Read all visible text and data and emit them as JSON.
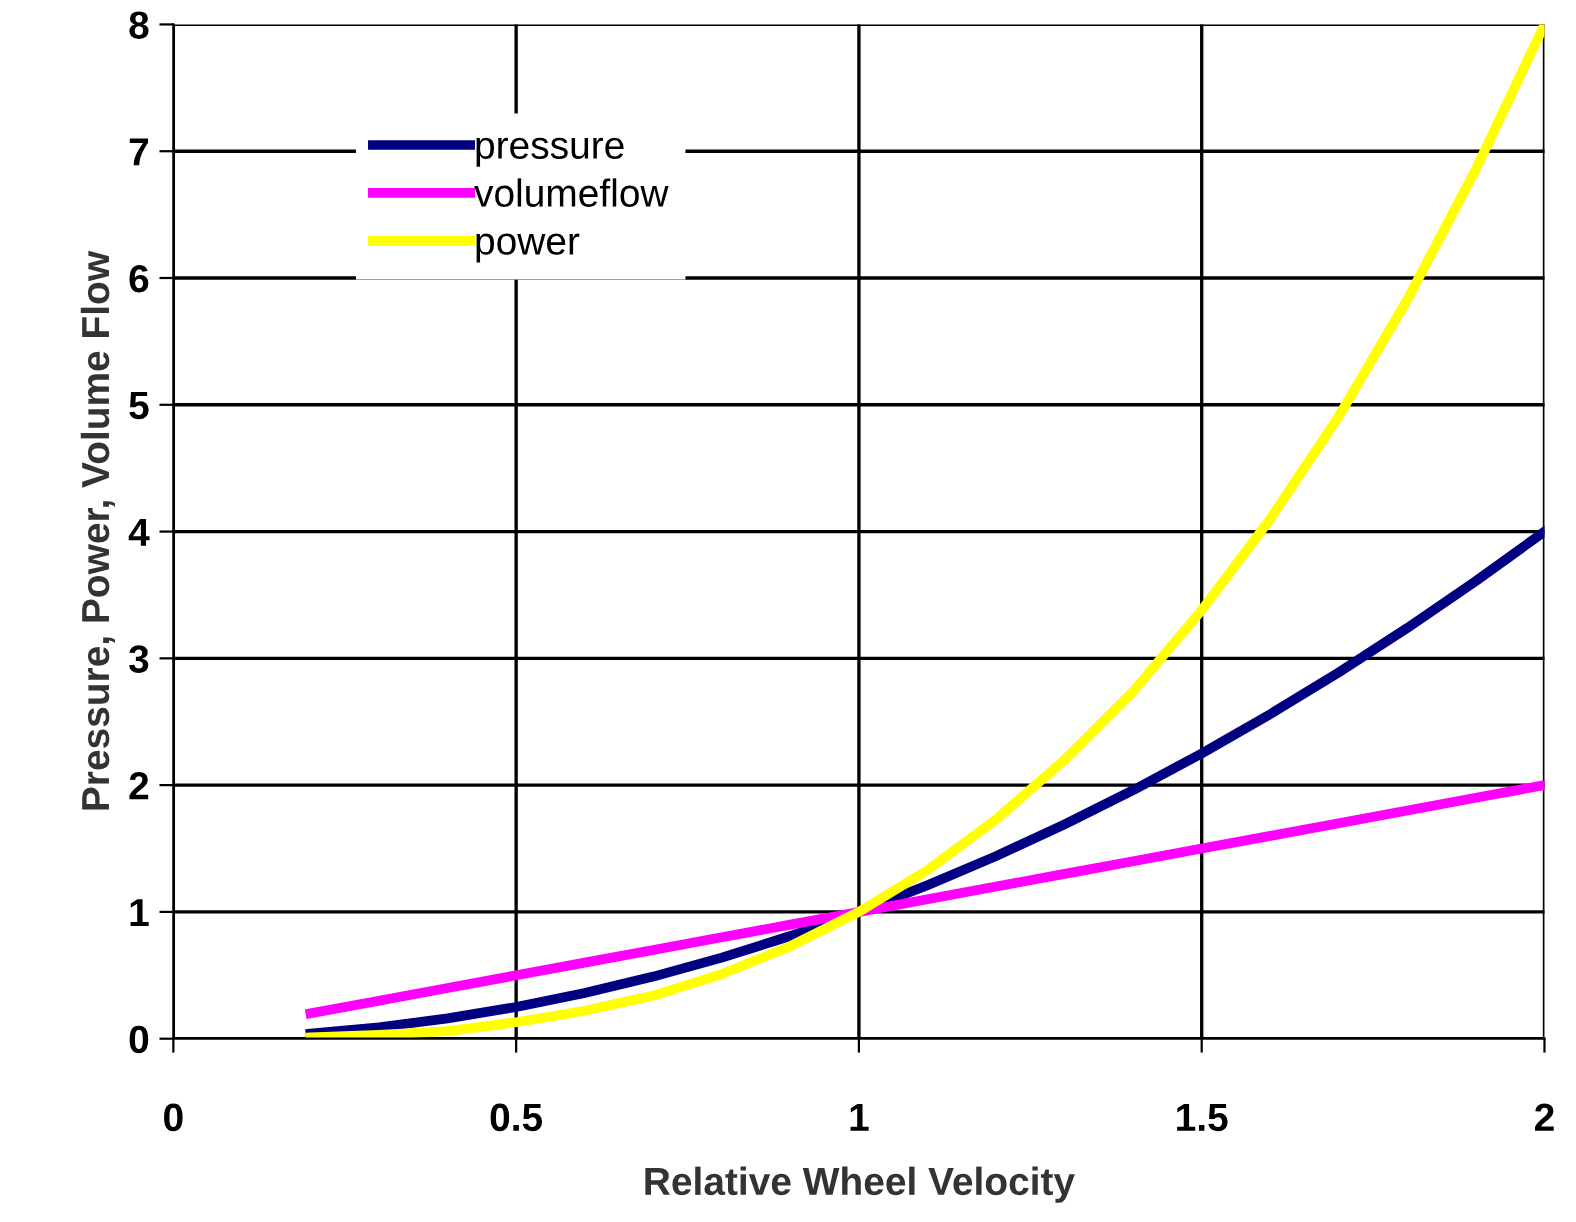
{
  "chart_data": {
    "type": "line",
    "xlabel": "Relative Wheel Velocity",
    "ylabel": "Pressure, Power, Volume Flow",
    "x": [
      0.2,
      0.3,
      0.4,
      0.5,
      0.6,
      0.7,
      0.8,
      0.9,
      1.0,
      1.1,
      1.2,
      1.3,
      1.4,
      1.5,
      1.6,
      1.7,
      1.8,
      1.9,
      2.0
    ],
    "series": [
      {
        "name": "pressure",
        "color": "#000080",
        "values": [
          0.04,
          0.09,
          0.16,
          0.25,
          0.36,
          0.49,
          0.64,
          0.81,
          1,
          1.21,
          1.44,
          1.69,
          1.96,
          2.25,
          2.56,
          2.89,
          3.24,
          3.61,
          4
        ]
      },
      {
        "name": "volumeflow",
        "color": "#ff00ff",
        "values": [
          0.2,
          0.3,
          0.4,
          0.5,
          0.6,
          0.7,
          0.8,
          0.9,
          1,
          1.1,
          1.2,
          1.3,
          1.4,
          1.5,
          1.6,
          1.7,
          1.8,
          1.9,
          2
        ]
      },
      {
        "name": "power",
        "color": "#ffff00",
        "values": [
          0.01,
          0.03,
          0.06,
          0.13,
          0.22,
          0.34,
          0.51,
          0.73,
          1,
          1.33,
          1.73,
          2.2,
          2.74,
          3.38,
          4.1,
          4.91,
          5.83,
          6.86,
          8
        ]
      }
    ],
    "xlim": [
      0,
      2
    ],
    "xticks": [
      0,
      0.5,
      1,
      1.5,
      2
    ],
    "ylim": [
      0,
      8
    ],
    "yticks": [
      0,
      1,
      2,
      3,
      4,
      5,
      6,
      7,
      8
    ],
    "grid": true,
    "legend": "top left",
    "marker": "none",
    "line_style": "solid"
  }
}
